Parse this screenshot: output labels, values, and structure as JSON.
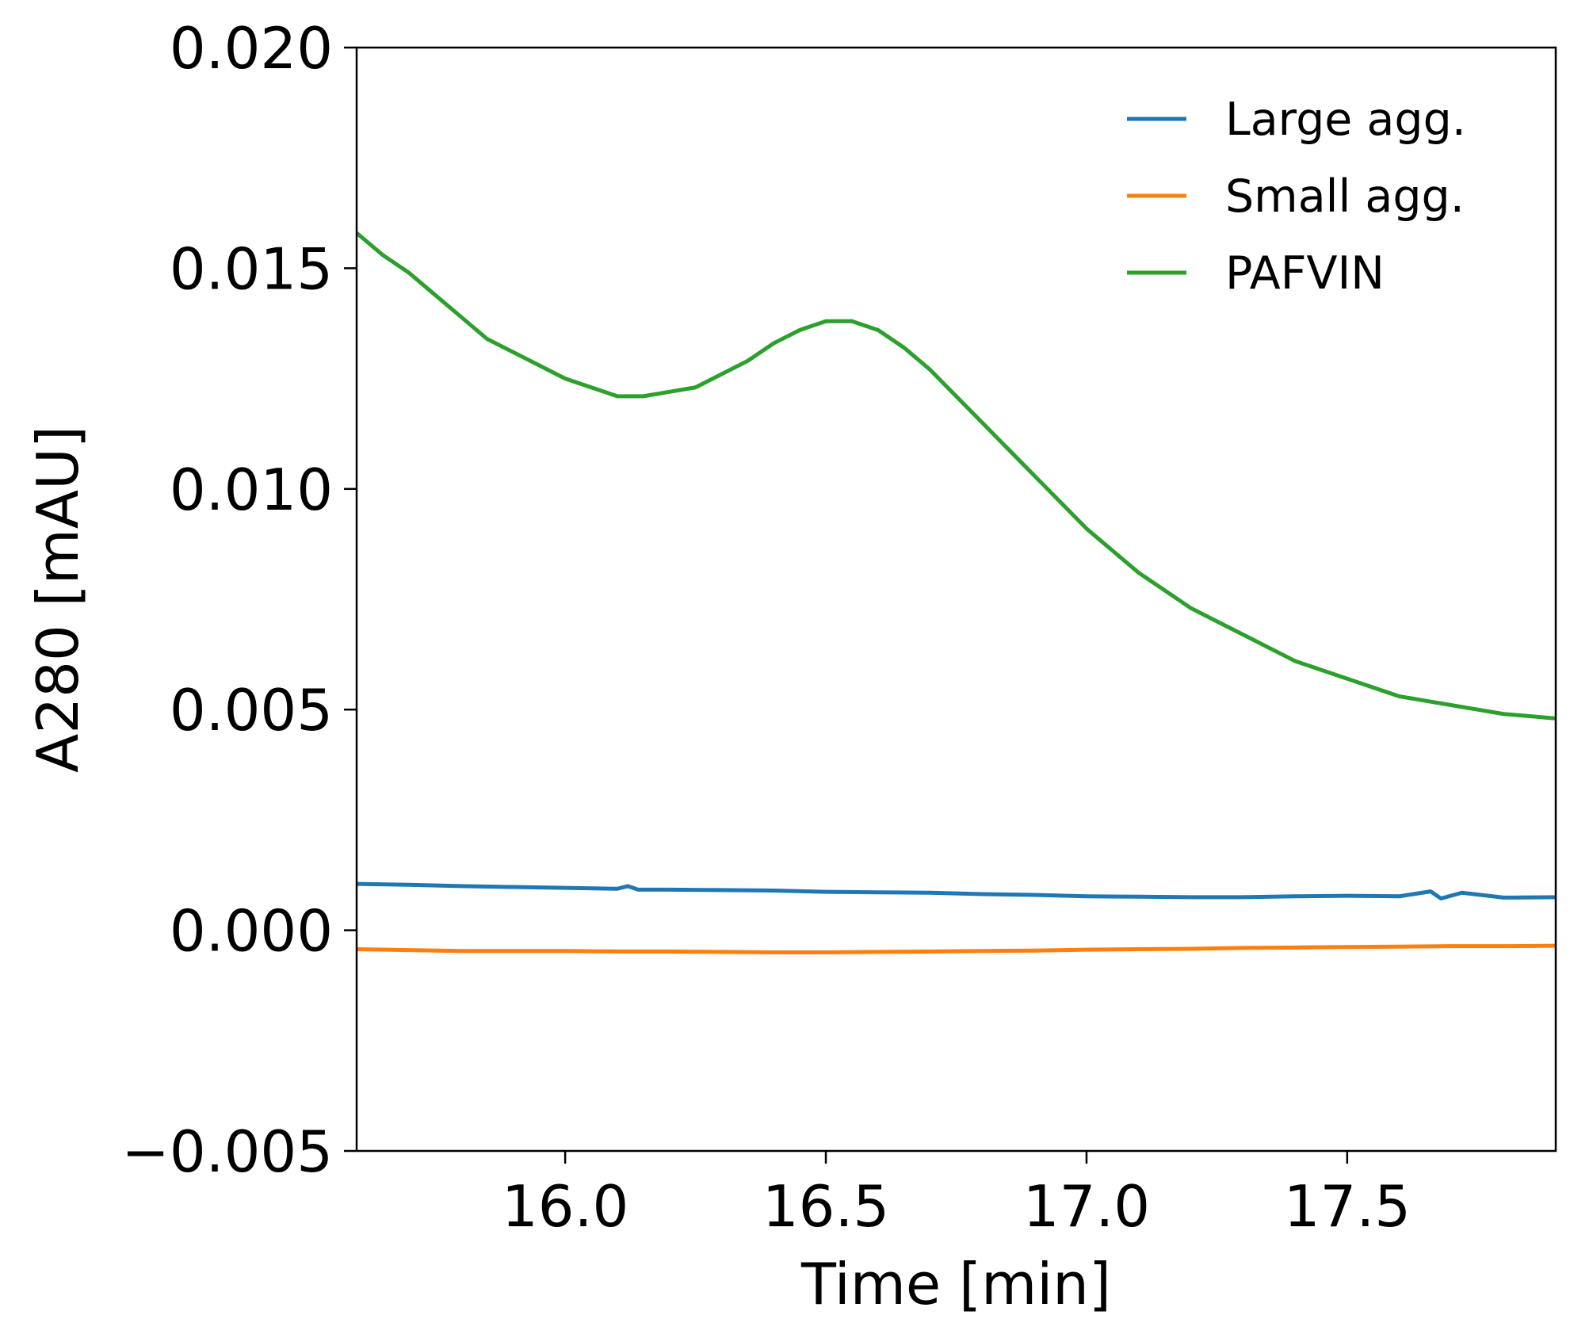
{
  "chart_data": {
    "type": "line",
    "title": "",
    "xlabel": "Time [min]",
    "ylabel": "A280 [mAU]",
    "xlim": [
      15.6,
      17.9
    ],
    "ylim": [
      -0.005,
      0.02
    ],
    "xticks": [
      16.0,
      16.5,
      17.0,
      17.5
    ],
    "xtick_labels": [
      "16.0",
      "16.5",
      "17.0",
      "17.5"
    ],
    "yticks": [
      -0.005,
      0.0,
      0.005,
      0.01,
      0.015,
      0.02
    ],
    "ytick_labels": [
      "−0.005",
      "0.000",
      "0.005",
      "0.010",
      "0.015",
      "0.020"
    ],
    "grid": false,
    "legend_position": "top-right",
    "legend_frame": false,
    "series": [
      {
        "name": "Large agg.",
        "color": "#1f77b4",
        "x": [
          15.6,
          15.7,
          15.8,
          15.9,
          16.0,
          16.1,
          16.12,
          16.14,
          16.2,
          16.3,
          16.4,
          16.5,
          16.6,
          16.7,
          16.8,
          16.9,
          17.0,
          17.1,
          17.2,
          17.3,
          17.4,
          17.5,
          17.6,
          17.66,
          17.68,
          17.72,
          17.8,
          17.9
        ],
        "values": [
          0.00105,
          0.00103,
          0.001,
          0.00098,
          0.00096,
          0.00094,
          0.001,
          0.00092,
          0.00092,
          0.00091,
          0.0009,
          0.00087,
          0.00086,
          0.00085,
          0.00082,
          0.0008,
          0.00077,
          0.00076,
          0.00075,
          0.00075,
          0.00077,
          0.00078,
          0.00077,
          0.00088,
          0.00072,
          0.00085,
          0.00074,
          0.00075
        ]
      },
      {
        "name": "Small agg.",
        "color": "#ff7f0e",
        "x": [
          15.6,
          15.7,
          15.8,
          15.9,
          16.0,
          16.1,
          16.2,
          16.3,
          16.4,
          16.5,
          16.6,
          16.7,
          16.8,
          16.9,
          17.0,
          17.1,
          17.2,
          17.3,
          17.4,
          17.5,
          17.6,
          17.7,
          17.8,
          17.9
        ],
        "values": [
          -0.00043,
          -0.00045,
          -0.00047,
          -0.00047,
          -0.00047,
          -0.00048,
          -0.00048,
          -0.00049,
          -0.0005,
          -0.0005,
          -0.00049,
          -0.00048,
          -0.00047,
          -0.00046,
          -0.00044,
          -0.00043,
          -0.00042,
          -0.0004,
          -0.00039,
          -0.00038,
          -0.00037,
          -0.00036,
          -0.00036,
          -0.00035
        ]
      },
      {
        "name": "PAFVIN",
        "color": "#2ca02c",
        "x": [
          15.6,
          15.65,
          15.7,
          15.75,
          15.8,
          15.85,
          15.9,
          15.95,
          16.0,
          16.05,
          16.1,
          16.15,
          16.2,
          16.25,
          16.3,
          16.35,
          16.4,
          16.45,
          16.5,
          16.55,
          16.6,
          16.65,
          16.7,
          16.75,
          16.8,
          16.85,
          16.9,
          16.95,
          17.0,
          17.05,
          17.1,
          17.15,
          17.2,
          17.25,
          17.3,
          17.35,
          17.4,
          17.45,
          17.5,
          17.55,
          17.6,
          17.65,
          17.7,
          17.75,
          17.8,
          17.85,
          17.9
        ],
        "values": [
          0.0158,
          0.0153,
          0.0149,
          0.0144,
          0.0139,
          0.0134,
          0.0131,
          0.0128,
          0.0125,
          0.0123,
          0.0121,
          0.0121,
          0.0122,
          0.0123,
          0.0126,
          0.0129,
          0.0133,
          0.0136,
          0.0138,
          0.0138,
          0.0136,
          0.0132,
          0.0127,
          0.0121,
          0.0115,
          0.0109,
          0.0103,
          0.0097,
          0.0091,
          0.0086,
          0.0081,
          0.0077,
          0.0073,
          0.007,
          0.0067,
          0.0064,
          0.0061,
          0.0059,
          0.0057,
          0.0055,
          0.0053,
          0.0052,
          0.0051,
          0.005,
          0.0049,
          0.00485,
          0.0048
        ]
      }
    ]
  }
}
